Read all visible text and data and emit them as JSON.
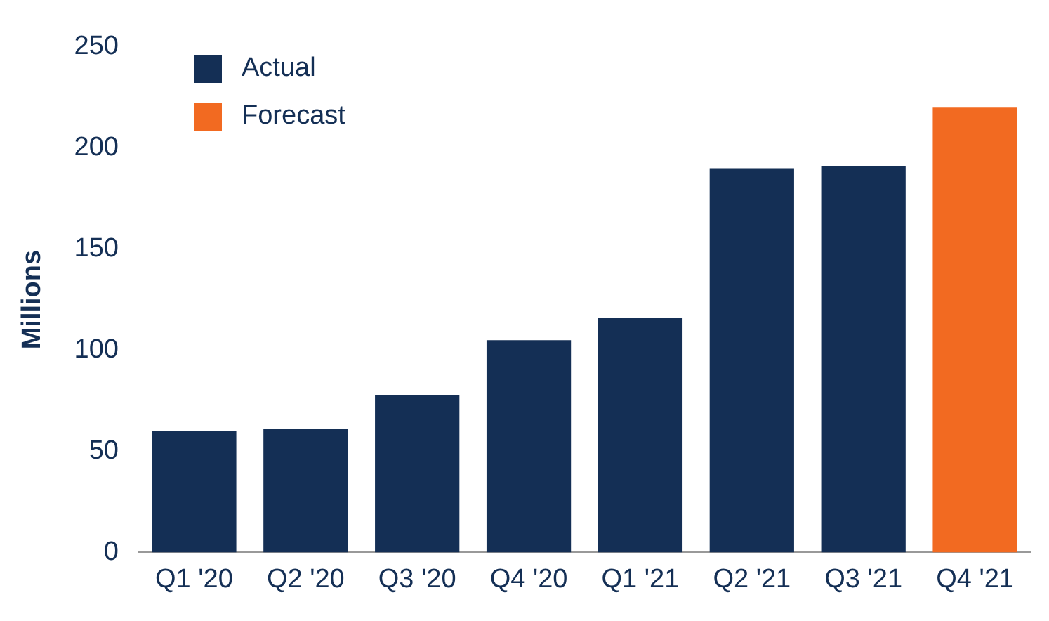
{
  "chart_data": {
    "type": "bar",
    "ylabel": "Millions",
    "categories": [
      "Q1 '20",
      "Q2 '20",
      "Q3 '20",
      "Q4 '20",
      "Q1 '21",
      "Q2 '21",
      "Q3 '21",
      "Q4 '21"
    ],
    "series": [
      {
        "name": "Actual",
        "color": "#142f55",
        "values": [
          60,
          61,
          78,
          105,
          116,
          190,
          191,
          null
        ]
      },
      {
        "name": "Forecast",
        "color": "#f26a21",
        "values": [
          null,
          null,
          null,
          null,
          null,
          null,
          null,
          220
        ]
      }
    ],
    "ylim": [
      0,
      250
    ],
    "yticks": [
      0,
      50,
      100,
      150,
      200,
      250
    ],
    "grid": false,
    "legend": "top left"
  }
}
